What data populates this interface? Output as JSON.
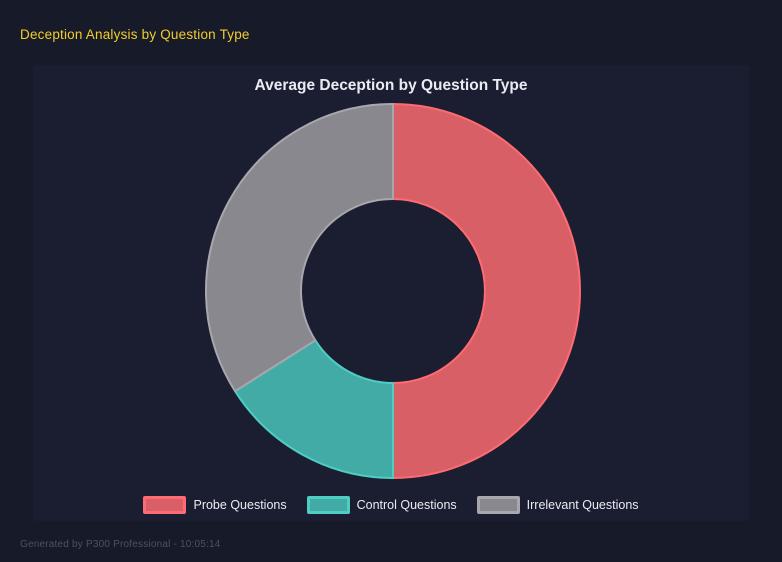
{
  "window": {
    "background": "#171A28"
  },
  "header": {
    "title": "Deception Analysis by Question Type",
    "color": "#F2CE2B"
  },
  "panel": {
    "background": "#1B1E31"
  },
  "chart_data": {
    "type": "pie",
    "subtype": "doughnut",
    "title": "Average Deception by Question Type",
    "legend_position": "bottom",
    "cutout_percent": 49,
    "start_angle_deg": 0,
    "direction": "clockwise",
    "categories": [
      "Probe Questions",
      "Control Questions",
      "Irrelevant Questions"
    ],
    "values_percent": [
      50,
      16,
      34
    ],
    "segments": [
      {
        "label": "Probe Questions",
        "percent": 50,
        "fill": "#D95F66",
        "border": "#FF6B72"
      },
      {
        "label": "Control Questions",
        "percent": 16,
        "fill": "#43ABA6",
        "border": "#4ECDC4"
      },
      {
        "label": "Irrelevant Questions",
        "percent": 34,
        "fill": "#88888E",
        "border": "#A7A7AD"
      }
    ]
  },
  "footer": {
    "text": "Generated by P300 Professional - 10:05:14"
  }
}
